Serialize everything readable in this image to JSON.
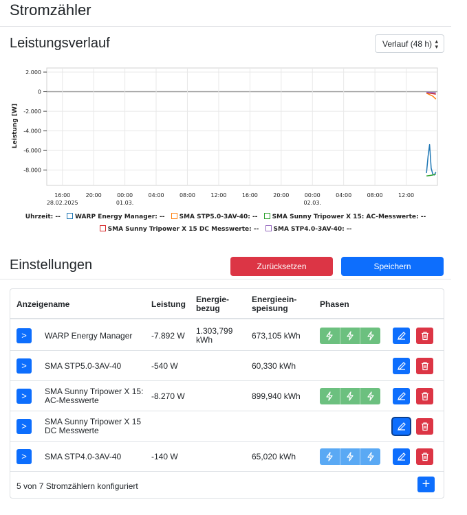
{
  "page": {
    "title": "Stromzähler"
  },
  "history": {
    "title": "Leistungsverlauf",
    "range_select": "Verlauf (48 h)"
  },
  "chart_data": {
    "type": "line",
    "ylabel": "Leistung [W]",
    "xlabel": "",
    "ylim": [
      -9000,
      2000
    ],
    "yticks": [
      2000,
      0,
      -2000,
      -4000,
      -6000,
      -8000
    ],
    "ytick_labels": [
      "2.000",
      "0",
      "-2.000",
      "-4.000",
      "-6.000",
      "-8.000"
    ],
    "xtick_labels": [
      [
        "16:00",
        "28.02.2025"
      ],
      [
        "20:00",
        ""
      ],
      [
        "00:00",
        "01.03."
      ],
      [
        "04:00",
        ""
      ],
      [
        "08:00",
        ""
      ],
      [
        "12:00",
        ""
      ],
      [
        "16:00",
        ""
      ],
      [
        "20:00",
        ""
      ],
      [
        "00:00",
        "02.03."
      ],
      [
        "04:00",
        ""
      ],
      [
        "08:00",
        ""
      ],
      [
        "12:00",
        ""
      ]
    ],
    "x_hours": [
      0,
      4,
      8,
      12,
      16,
      20,
      24,
      28,
      32,
      36,
      40,
      44
    ],
    "xlim": [
      -2,
      48
    ],
    "grid": true,
    "series": [
      {
        "name": "WARP Energy Manager",
        "color": "#1f77b4",
        "x": [
          46.6,
          46.8,
          47.0,
          47.2,
          47.4,
          47.6,
          47.8
        ],
        "y": [
          -8300,
          -6600,
          -5400,
          -7800,
          -8400,
          -8500,
          -8200
        ]
      },
      {
        "name": "SMA STP5.0-3AV-40",
        "color": "#ff7f0e",
        "x": [
          46.6,
          47.0,
          47.4,
          47.6,
          47.8
        ],
        "y": [
          -150,
          -300,
          -450,
          -600,
          -750
        ]
      },
      {
        "name": "SMA Sunny Tripower X 15: AC-Messwerte",
        "color": "#2ca02c",
        "x": [
          46.6,
          47.0,
          47.4,
          47.8
        ],
        "y": [
          -8600,
          -8550,
          -8500,
          -8400
        ]
      },
      {
        "name": "SMA Sunny Tripower X 15 DC Messwerte",
        "color": "#d62728",
        "x": [
          46.6,
          47.0,
          47.4,
          47.8
        ],
        "y": [
          -100,
          -150,
          -200,
          -250
        ]
      },
      {
        "name": "SMA STP4.0-3AV-40",
        "color": "#9467bd",
        "x": [
          46.6,
          47.0,
          47.4,
          47.8
        ],
        "y": [
          -50,
          -80,
          -100,
          -120
        ]
      }
    ]
  },
  "legend": {
    "time_label": "Uhrzeit:",
    "time_value": "--",
    "items": [
      {
        "name": "WARP Energy Manager:",
        "value": "--",
        "color": "#1f77b4"
      },
      {
        "name": "SMA STP5.0-3AV-40:",
        "value": "--",
        "color": "#ff7f0e"
      },
      {
        "name": "SMA Sunny Tripower X 15: AC-Messwerte:",
        "value": "--",
        "color": "#2ca02c"
      },
      {
        "name": "SMA Sunny Tripower X 15 DC Messwerte:",
        "value": "--",
        "color": "#d62728"
      },
      {
        "name": "SMA STP4.0-3AV-40:",
        "value": "--",
        "color": "#9467bd"
      }
    ]
  },
  "settings": {
    "title": "Einstellungen",
    "reset_label": "Zurücksetzen",
    "save_label": "Speichern",
    "reset_color": "#dc3545",
    "save_color": "#0d6efd"
  },
  "table": {
    "headers": {
      "name": "Anzeigename",
      "power": "Leistung",
      "import_1": "Energie-",
      "import_2": "bezug",
      "export_1": "Energieein-",
      "export_2": "speisung",
      "phases": "Phasen"
    },
    "rows": [
      {
        "expand": ">",
        "name_1": "WARP Energy Manager",
        "name_2": "",
        "power": "-7.892 W",
        "import_1": "1.303,799",
        "import_2": "kWh",
        "export": "673,105 kWh",
        "phases": "green"
      },
      {
        "expand": ">",
        "name_1": "SMA STP5.0-3AV-40",
        "name_2": "",
        "power": "-540 W",
        "import_1": "",
        "import_2": "",
        "export": "60,330 kWh",
        "phases": "none"
      },
      {
        "expand": ">",
        "name_1": "SMA Sunny Tripower X 15:",
        "name_2": "AC-Messwerte",
        "power": "-8.270 W",
        "import_1": "",
        "import_2": "",
        "export": "899,940 kWh",
        "phases": "green"
      },
      {
        "expand": ">",
        "name_1": "SMA Sunny Tripower X 15",
        "name_2": "DC Messwerte",
        "power": "",
        "import_1": "",
        "import_2": "",
        "export": "",
        "phases": "none"
      },
      {
        "expand": ">",
        "name_1": "SMA STP4.0-3AV-40",
        "name_2": "",
        "power": "-140 W",
        "import_1": "",
        "import_2": "",
        "export": "65,020 kWh",
        "phases": "blue"
      }
    ],
    "footer": "5 von 7 Stromzählern konfiguriert",
    "add_label": "+"
  },
  "colors": {
    "phase_active": "#6cc07f",
    "phase_inactive": "#5aa9f4",
    "primary": "#0d6efd",
    "danger": "#dc3545"
  }
}
